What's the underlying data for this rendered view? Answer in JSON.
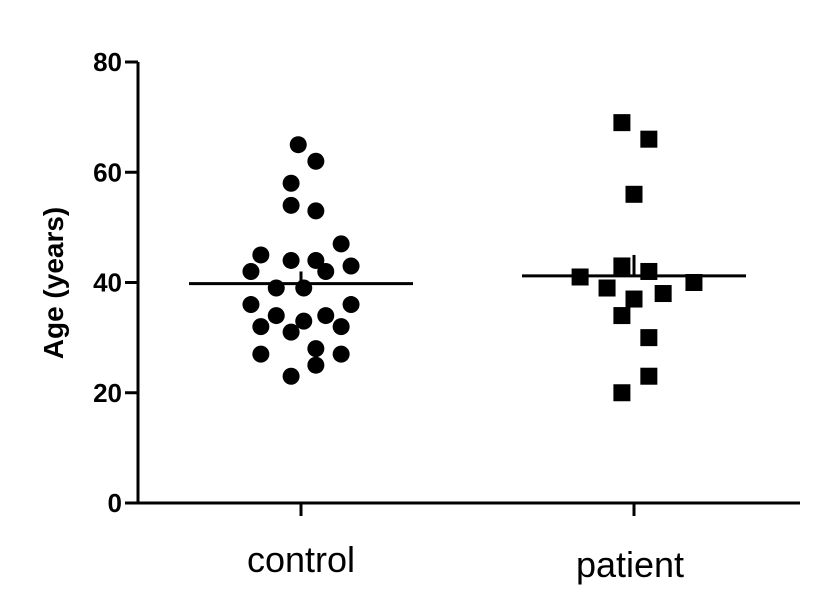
{
  "chart_data": {
    "type": "scatter",
    "title": "",
    "xlabel": "",
    "ylabel": "Age (years)",
    "ylim": [
      0,
      80
    ],
    "yticks": [
      0,
      20,
      40,
      60,
      80
    ],
    "grid": false,
    "categories": [
      "control",
      "patient"
    ],
    "series": [
      {
        "category": "control",
        "marker": "circle",
        "mean": 39.8,
        "sem_upper": 42.0,
        "points": [
          {
            "dx": -0.05,
            "y": 65
          },
          {
            "dx": 0.27,
            "y": 62
          },
          {
            "dx": -0.18,
            "y": 58
          },
          {
            "dx": -0.18,
            "y": 54
          },
          {
            "dx": 0.27,
            "y": 53
          },
          {
            "dx": 0.73,
            "y": 47
          },
          {
            "dx": -0.73,
            "y": 45
          },
          {
            "dx": -0.18,
            "y": 44
          },
          {
            "dx": 0.27,
            "y": 44
          },
          {
            "dx": -0.91,
            "y": 42
          },
          {
            "dx": 0.45,
            "y": 42
          },
          {
            "dx": 0.91,
            "y": 43
          },
          {
            "dx": -0.45,
            "y": 39
          },
          {
            "dx": 0.05,
            "y": 39
          },
          {
            "dx": -0.91,
            "y": 36
          },
          {
            "dx": 0.91,
            "y": 36
          },
          {
            "dx": -0.45,
            "y": 34
          },
          {
            "dx": 0.45,
            "y": 34
          },
          {
            "dx": 0.05,
            "y": 33
          },
          {
            "dx": -0.73,
            "y": 32
          },
          {
            "dx": 0.73,
            "y": 32
          },
          {
            "dx": -0.18,
            "y": 31
          },
          {
            "dx": 0.27,
            "y": 28
          },
          {
            "dx": -0.73,
            "y": 27
          },
          {
            "dx": 0.73,
            "y": 27
          },
          {
            "dx": 0.27,
            "y": 25
          },
          {
            "dx": -0.18,
            "y": 23
          }
        ]
      },
      {
        "category": "patient",
        "marker": "square",
        "mean": 41.2,
        "sem_upper": 45.0,
        "points": [
          {
            "dx": -0.22,
            "y": 69
          },
          {
            "dx": 0.27,
            "y": 66
          },
          {
            "dx": 0.0,
            "y": 56
          },
          {
            "dx": -0.22,
            "y": 43
          },
          {
            "dx": 0.27,
            "y": 42
          },
          {
            "dx": -0.98,
            "y": 41
          },
          {
            "dx": 1.09,
            "y": 40
          },
          {
            "dx": -0.49,
            "y": 39
          },
          {
            "dx": 0.53,
            "y": 38
          },
          {
            "dx": 0.0,
            "y": 37
          },
          {
            "dx": -0.22,
            "y": 34
          },
          {
            "dx": 0.27,
            "y": 30
          },
          {
            "dx": 0.27,
            "y": 23
          },
          {
            "dx": -0.22,
            "y": 20
          }
        ]
      }
    ]
  }
}
